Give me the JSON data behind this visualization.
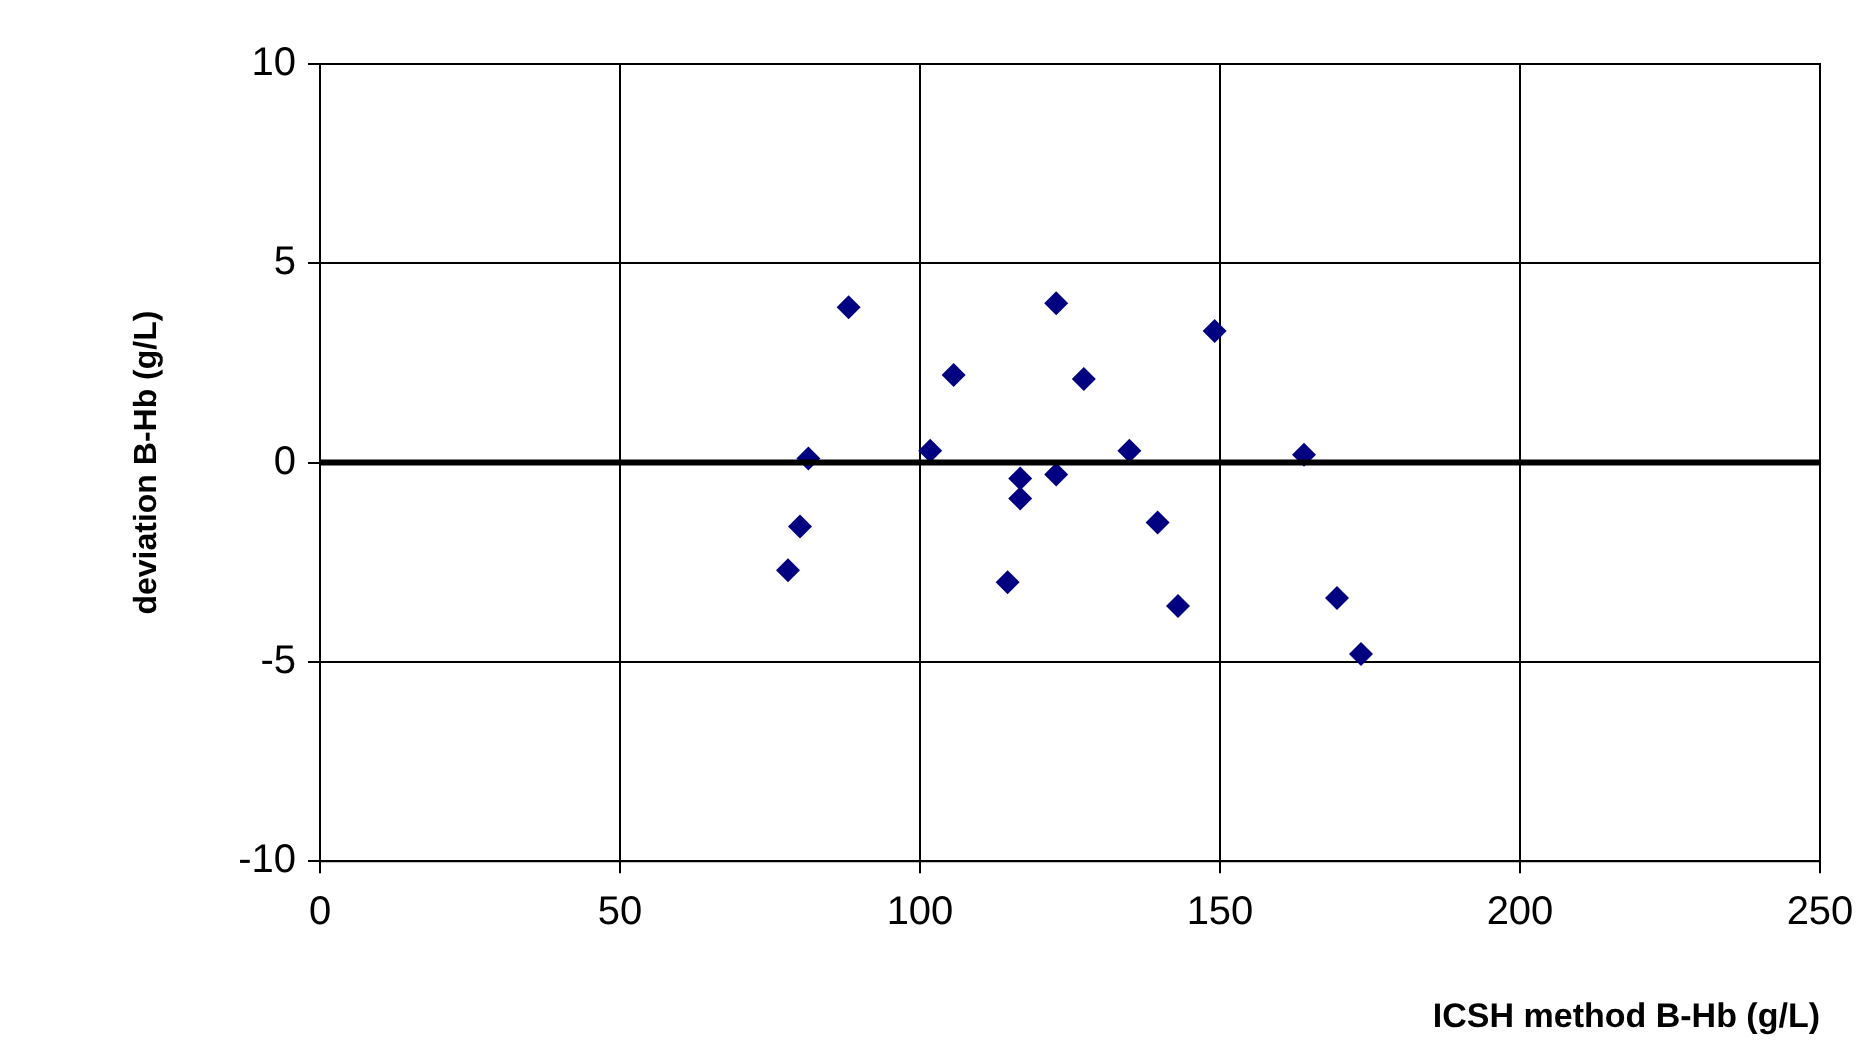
{
  "chart_data": {
    "type": "scatter",
    "xlabel": "ICSH method B-Hb (g/L)",
    "ylabel": "deviation B-Hb (g/L)",
    "x": [
      88.1,
      122.7,
      149.1,
      105.6,
      127.3,
      81.4,
      101.7,
      134.9,
      164,
      116.7,
      122.7,
      116.7,
      80,
      139.6,
      78,
      114.6,
      143,
      169.5,
      173.5
    ],
    "series": [
      {
        "color": "#000080",
        "values": [
          3.9,
          4.0,
          3.3,
          2.2,
          2.1,
          0.1,
          0.3,
          0.3,
          0.2,
          -0.4,
          -0.3,
          -0.9,
          -1.6,
          -1.5,
          -2.7,
          -3.0,
          -3.6,
          -3.4,
          -4.8
        ]
      }
    ],
    "xlim": [
      0,
      250
    ],
    "xticks": [
      0,
      50,
      100,
      150,
      200,
      250
    ],
    "ylim": [
      -10,
      10
    ],
    "yticks": [
      -10,
      -5,
      0,
      5,
      10
    ],
    "ref_lines": [
      {
        "axis": "y",
        "value": 0,
        "color": "#000000"
      }
    ],
    "grid": true,
    "legend": false,
    "marker": "diamond"
  }
}
